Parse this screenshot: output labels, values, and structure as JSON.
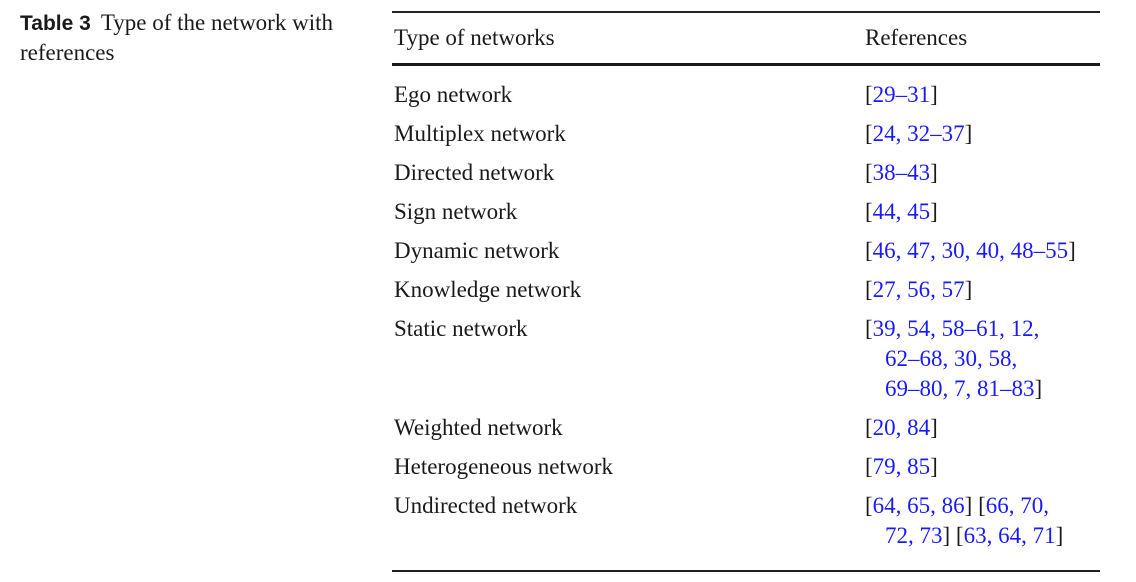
{
  "caption": {
    "label": "Table 3",
    "text": "Type of the network with references"
  },
  "table": {
    "headers": {
      "type": "Type of networks",
      "refs": "References"
    },
    "rows": [
      {
        "type": "Ego network",
        "refs": [
          "[29–31]"
        ]
      },
      {
        "type": "Multiplex network",
        "refs": [
          "[24, 32–37]"
        ]
      },
      {
        "type": "Directed network",
        "refs": [
          "[38–43]"
        ]
      },
      {
        "type": "Sign network",
        "refs": [
          "[44, 45]"
        ]
      },
      {
        "type": "Dynamic network",
        "refs": [
          "[46, 47, 30, 40, 48–55]"
        ]
      },
      {
        "type": "Knowledge network",
        "refs": [
          "[27, 56, 57]"
        ]
      },
      {
        "type": "Static network",
        "refs": [
          "[39, 54, 58–61, 12,",
          "62–68, 30, 58,",
          "69–80, 7, 81–83]"
        ]
      },
      {
        "type": "Weighted network",
        "refs": [
          "[20, 84]"
        ]
      },
      {
        "type": "Heterogeneous network",
        "refs": [
          "[79, 85]"
        ]
      },
      {
        "type": "Undirected network",
        "refs": [
          "[64, 65, 86] [66, 70,",
          "72, 73] [63, 64, 71]"
        ]
      }
    ]
  },
  "colors": {
    "text": "#1a1a1a",
    "link": "#1a1aff"
  }
}
